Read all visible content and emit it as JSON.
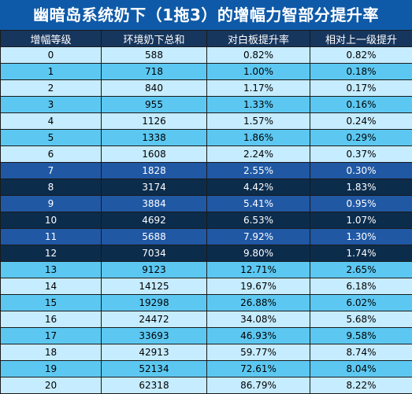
{
  "title": "幽暗岛系统奶下（1拖3）的增幅力智部分提升率",
  "table": {
    "headers": [
      "增幅等级",
      "环境奶下总和",
      "对白板提升率",
      "相对上一级提升"
    ],
    "rows": [
      {
        "level": "0",
        "total": "588",
        "vs_base": "0.82%",
        "vs_prev": "0.82%",
        "style": "light"
      },
      {
        "level": "1",
        "total": "718",
        "vs_base": "1.00%",
        "vs_prev": "0.18%",
        "style": "mid"
      },
      {
        "level": "2",
        "total": "840",
        "vs_base": "1.17%",
        "vs_prev": "0.17%",
        "style": "light"
      },
      {
        "level": "3",
        "total": "955",
        "vs_base": "1.33%",
        "vs_prev": "0.16%",
        "style": "mid"
      },
      {
        "level": "4",
        "total": "1126",
        "vs_base": "1.57%",
        "vs_prev": "0.24%",
        "style": "light"
      },
      {
        "level": "5",
        "total": "1338",
        "vs_base": "1.86%",
        "vs_prev": "0.29%",
        "style": "mid"
      },
      {
        "level": "6",
        "total": "1608",
        "vs_base": "2.24%",
        "vs_prev": "0.37%",
        "style": "light"
      },
      {
        "level": "7",
        "total": "1828",
        "vs_base": "2.55%",
        "vs_prev": "0.30%",
        "style": "blue"
      },
      {
        "level": "8",
        "total": "3174",
        "vs_base": "4.42%",
        "vs_prev": "1.83%",
        "style": "dark"
      },
      {
        "level": "9",
        "total": "3884",
        "vs_base": "5.41%",
        "vs_prev": "0.95%",
        "style": "blue"
      },
      {
        "level": "10",
        "total": "4692",
        "vs_base": "6.53%",
        "vs_prev": "1.07%",
        "style": "dark"
      },
      {
        "level": "11",
        "total": "5688",
        "vs_base": "7.92%",
        "vs_prev": "1.30%",
        "style": "blue"
      },
      {
        "level": "12",
        "total": "7034",
        "vs_base": "9.80%",
        "vs_prev": "1.74%",
        "style": "dark"
      },
      {
        "level": "13",
        "total": "9123",
        "vs_base": "12.71%",
        "vs_prev": "2.65%",
        "style": "mid"
      },
      {
        "level": "14",
        "total": "14125",
        "vs_base": "19.67%",
        "vs_prev": "6.18%",
        "style": "light"
      },
      {
        "level": "15",
        "total": "19298",
        "vs_base": "26.88%",
        "vs_prev": "6.02%",
        "style": "mid"
      },
      {
        "level": "16",
        "total": "24472",
        "vs_base": "34.08%",
        "vs_prev": "5.68%",
        "style": "light"
      },
      {
        "level": "17",
        "total": "33693",
        "vs_base": "46.93%",
        "vs_prev": "9.58%",
        "style": "mid"
      },
      {
        "level": "18",
        "total": "42913",
        "vs_base": "59.77%",
        "vs_prev": "8.74%",
        "style": "light"
      },
      {
        "level": "19",
        "total": "52134",
        "vs_base": "72.61%",
        "vs_prev": "8.04%",
        "style": "mid"
      },
      {
        "level": "20",
        "total": "62318",
        "vs_base": "86.79%",
        "vs_prev": "8.22%",
        "style": "light"
      }
    ]
  },
  "colors": {
    "title_bg": "#0e5aa8",
    "header_bg": "#17365d",
    "row_light": "#c6ecff",
    "row_mid": "#5cc8f2",
    "row_blue": "#2058a4",
    "row_dark": "#0c2c4c"
  }
}
